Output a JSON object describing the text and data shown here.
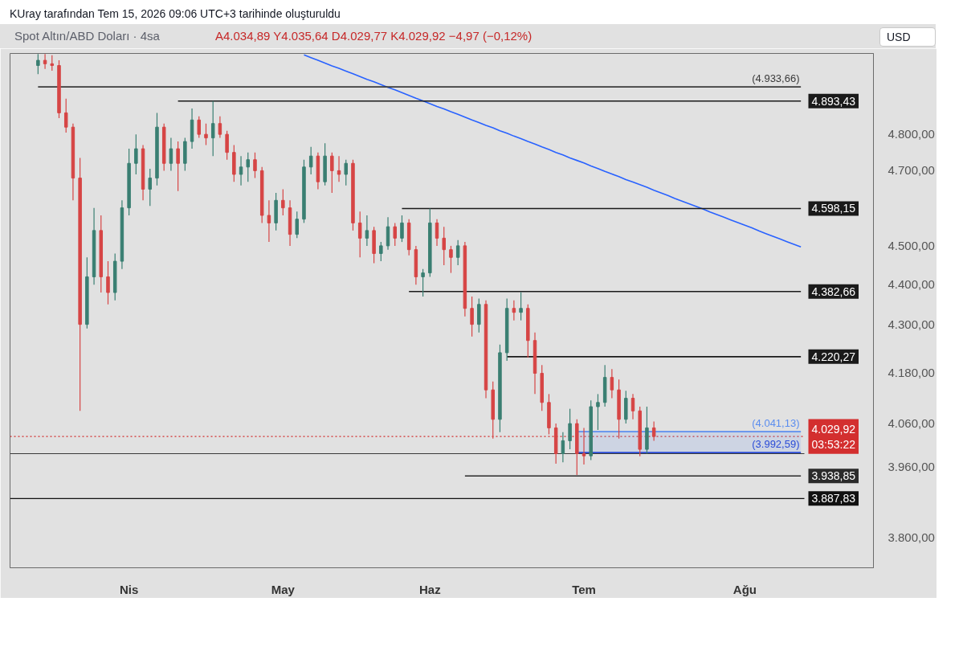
{
  "chart_data": {
    "type": "candlestick",
    "title": "Spot Altın/ABD Doları · 4sa",
    "subtitle": "A4.034,89 Y4.035,64 D4.029,77 K4.029,92 −4,97 (−0,12%)",
    "annotations": [
      "KUray tarafından Tem 15, 2026 09:06 UTC+3 tarihinde oluşturuldu",
      "USD"
    ],
    "categories": [
      null,
      null,
      null,
      null,
      null,
      null,
      null,
      null,
      null,
      null,
      null,
      null,
      null,
      "Nis",
      null,
      null,
      null,
      null,
      null,
      null,
      null,
      null,
      null,
      null,
      null,
      null,
      null,
      null,
      null,
      null,
      null,
      null,
      null,
      null,
      null,
      "May",
      null,
      null,
      null,
      null,
      null,
      null,
      null,
      null,
      null,
      null,
      null,
      null,
      null,
      null,
      null,
      null,
      null,
      null,
      null,
      null,
      "Haz",
      null,
      null,
      null,
      null,
      null,
      null,
      null,
      null,
      null,
      null,
      null,
      null,
      null,
      null,
      null,
      null,
      null,
      null,
      null,
      null,
      null,
      "Tem",
      null,
      null,
      null,
      null,
      null,
      null,
      null,
      null,
      null,
      null,
      null,
      null,
      null,
      null,
      null,
      null,
      null,
      null,
      null,
      null,
      null,
      null,
      "Ağu",
      null,
      null,
      null,
      null,
      null,
      null,
      null,
      null
    ],
    "ohlc": [
      [
        4995,
        5028,
        4970,
        5010
      ],
      [
        5010,
        5028,
        4985,
        5000
      ],
      [
        5000,
        5025,
        4980,
        4995
      ],
      [
        4995,
        5010,
        4845,
        4860
      ],
      [
        4860,
        4900,
        4805,
        4820
      ],
      [
        4820,
        4830,
        4620,
        4680
      ],
      [
        4680,
        4735,
        4090,
        4300
      ],
      [
        4300,
        4470,
        4290,
        4420
      ],
      [
        4420,
        4600,
        4400,
        4540
      ],
      [
        4540,
        4580,
        4380,
        4420
      ],
      [
        4420,
        4460,
        4350,
        4380
      ],
      [
        4380,
        4480,
        4360,
        4460
      ],
      [
        4460,
        4620,
        4440,
        4600
      ],
      [
        4600,
        4760,
        4580,
        4720
      ],
      [
        4720,
        4800,
        4690,
        4760
      ],
      [
        4760,
        4770,
        4620,
        4650
      ],
      [
        4650,
        4705,
        4605,
        4680
      ],
      [
        4680,
        4860,
        4660,
        4820
      ],
      [
        4820,
        4830,
        4700,
        4720
      ],
      [
        4720,
        4790,
        4700,
        4760
      ],
      [
        4760,
        4780,
        4645,
        4720
      ],
      [
        4720,
        4790,
        4700,
        4780
      ],
      [
        4780,
        4872,
        4760,
        4840
      ],
      [
        4840,
        4850,
        4790,
        4800
      ],
      [
        4800,
        4830,
        4770,
        4790
      ],
      [
        4790,
        4893,
        4740,
        4830
      ],
      [
        4830,
        4850,
        4790,
        4800
      ],
      [
        4800,
        4810,
        4730,
        4750
      ],
      [
        4750,
        4770,
        4670,
        4690
      ],
      [
        4690,
        4740,
        4660,
        4710
      ],
      [
        4710,
        4750,
        4670,
        4730
      ],
      [
        4730,
        4750,
        4680,
        4700
      ],
      [
        4700,
        4710,
        4560,
        4580
      ],
      [
        4580,
        4620,
        4510,
        4560
      ],
      [
        4560,
        4640,
        4540,
        4620
      ],
      [
        4620,
        4650,
        4580,
        4600
      ],
      [
        4600,
        4620,
        4500,
        4530
      ],
      [
        4530,
        4590,
        4520,
        4570
      ],
      [
        4570,
        4730,
        4560,
        4710
      ],
      [
        4710,
        4765,
        4690,
        4740
      ],
      [
        4740,
        4750,
        4650,
        4670
      ],
      [
        4670,
        4775,
        4660,
        4740
      ],
      [
        4740,
        4750,
        4640,
        4700
      ],
      [
        4700,
        4740,
        4670,
        4690
      ],
      [
        4690,
        4730,
        4660,
        4720
      ],
      [
        4720,
        4730,
        4540,
        4560
      ],
      [
        4560,
        4590,
        4470,
        4520
      ],
      [
        4520,
        4580,
        4500,
        4540
      ],
      [
        4540,
        4550,
        4455,
        4480
      ],
      [
        4480,
        4510,
        4460,
        4500
      ],
      [
        4500,
        4575,
        4490,
        4550
      ],
      [
        4550,
        4560,
        4500,
        4520
      ],
      [
        4520,
        4580,
        4510,
        4560
      ],
      [
        4560,
        4570,
        4475,
        4490
      ],
      [
        4490,
        4500,
        4400,
        4420
      ],
      [
        4420,
        4440,
        4370,
        4430
      ],
      [
        4430,
        4598,
        4420,
        4560
      ],
      [
        4560,
        4570,
        4500,
        4520
      ],
      [
        4520,
        4550,
        4450,
        4490
      ],
      [
        4490,
        4500,
        4430,
        4470
      ],
      [
        4470,
        4515,
        4450,
        4500
      ],
      [
        4500,
        4510,
        4320,
        4340
      ],
      [
        4340,
        4370,
        4270,
        4300
      ],
      [
        4300,
        4365,
        4280,
        4350
      ],
      [
        4350,
        4360,
        4120,
        4140
      ],
      [
        4140,
        4160,
        4025,
        4070
      ],
      [
        4070,
        4250,
        4040,
        4230
      ],
      [
        4230,
        4365,
        4210,
        4340
      ],
      [
        4340,
        4360,
        4310,
        4330
      ],
      [
        4330,
        4381,
        4310,
        4340
      ],
      [
        4340,
        4350,
        4218,
        4260
      ],
      [
        4260,
        4280,
        4130,
        4180
      ],
      [
        4180,
        4200,
        4090,
        4110
      ],
      [
        4110,
        4130,
        4035,
        4050
      ],
      [
        4050,
        4060,
        3967,
        3990
      ],
      [
        3990,
        4040,
        3970,
        4020
      ],
      [
        4020,
        4095,
        4000,
        4060
      ],
      [
        4060,
        4070,
        3941,
        3990
      ],
      [
        3990,
        4050,
        3965,
        3985
      ],
      [
        3985,
        4115,
        3975,
        4100
      ],
      [
        4100,
        4130,
        4045,
        4110
      ],
      [
        4110,
        4200,
        4100,
        4170
      ],
      [
        4170,
        4190,
        4120,
        4140
      ],
      [
        4140,
        4165,
        4025,
        4070
      ],
      [
        4070,
        4138,
        4060,
        4120
      ],
      [
        4120,
        4130,
        4070,
        4090
      ],
      [
        4090,
        4100,
        3984,
        4000
      ],
      [
        4000,
        4100,
        3990,
        4050
      ],
      [
        4050,
        4065,
        4020,
        4029.92
      ],
      null,
      null,
      null,
      null,
      null,
      null,
      null,
      null,
      null,
      null,
      null,
      null,
      null,
      null,
      null,
      null,
      null,
      null,
      null,
      null,
      null
    ],
    "colors": [
      "#3a7f72",
      "#d64545",
      "#d64545",
      "#d64545",
      "#d64545",
      "#d64545",
      "#d64545",
      "#3a7f72",
      "#3a7f72",
      "#d64545",
      "#d64545",
      "#3a7f72",
      "#3a7f72",
      "#3a7f72",
      "#3a7f72",
      "#d64545",
      "#3a7f72",
      "#3a7f72",
      "#d64545",
      "#3a7f72",
      "#d64545",
      "#3a7f72",
      "#3a7f72",
      "#d64545",
      "#d64545",
      "#3a7f72",
      "#d64545",
      "#d64545",
      "#d64545",
      "#3a7f72",
      "#3a7f72",
      "#d64545",
      "#d64545",
      "#d64545",
      "#3a7f72",
      "#d64545",
      "#d64545",
      "#3a7f72",
      "#3a7f72",
      "#3a7f72",
      "#d64545",
      "#3a7f72",
      "#d64545",
      "#d64545",
      "#3a7f72",
      "#d64545",
      "#d64545",
      "#3a7f72",
      "#d64545",
      "#3a7f72",
      "#3a7f72",
      "#d64545",
      "#3a7f72",
      "#d64545",
      "#d64545",
      "#3a7f72",
      "#3a7f72",
      "#d64545",
      "#d64545",
      "#d64545",
      "#3a7f72",
      "#d64545",
      "#d64545",
      "#3a7f72",
      "#d64545",
      "#d64545",
      "#3a7f72",
      "#3a7f72",
      "#d64545",
      "#3a7f72",
      "#d64545",
      "#d64545",
      "#d64545",
      "#d64545",
      "#d64545",
      "#3a7f72",
      "#3a7f72",
      "#d64545",
      "#d64545",
      "#3a7f72",
      "#3a7f72",
      "#3a7f72",
      "#d64545",
      "#d64545",
      "#3a7f72",
      "#d64545",
      "#d64545",
      "#3a7f72",
      "#d64545",
      null,
      null,
      null,
      null,
      null,
      null,
      null,
      null,
      null,
      null,
      null,
      null,
      null,
      null,
      null,
      null,
      null,
      null,
      null,
      null,
      null
    ],
    "series": [
      {
        "type": "line",
        "color": "#2962ff",
        "values": [
          null,
          null,
          null,
          null,
          null,
          null,
          null,
          null,
          null,
          null,
          null,
          null,
          null,
          null,
          null,
          null,
          null,
          null,
          null,
          null,
          null,
          null,
          null,
          null,
          null,
          null,
          null,
          null,
          null,
          null,
          null,
          null,
          null,
          null,
          null,
          null,
          null,
          null,
          5026,
          5018,
          5010,
          5002,
          4994,
          4987,
          4979,
          4971,
          4963,
          4955,
          4948,
          4940,
          4932,
          4925,
          4917,
          4909,
          4901,
          4894,
          4886,
          4878,
          4871,
          4863,
          4856,
          4848,
          4840,
          4833,
          4825,
          4818,
          4810,
          4803,
          4795,
          4788,
          4780,
          4773,
          4765,
          4758,
          4750,
          4743,
          4735,
          4728,
          4721,
          4713,
          4706,
          4698,
          4691,
          4684,
          4676,
          4669,
          4662,
          4655,
          4647,
          4640,
          4633,
          4625,
          4618,
          4611,
          4604,
          4597,
          4589,
          4582,
          4575,
          4568,
          4561,
          4554,
          4547,
          4539,
          4532,
          4525,
          4518,
          4511,
          4504,
          4497
        ]
      },
      {
        "type": "line",
        "name": "4.893,43",
        "color": "#1a1a1a",
        "values": [
          null,
          null,
          null,
          null,
          null,
          null,
          null,
          null,
          null,
          null,
          null,
          null,
          null,
          null,
          null,
          null,
          null,
          null,
          null,
          null,
          4893.43,
          4893.43,
          4893.43,
          4893.43,
          4893.43,
          4893.43,
          4893.43,
          4893.43,
          4893.43,
          4893.43,
          4893.43,
          4893.43,
          4893.43,
          4893.43,
          4893.43,
          4893.43,
          4893.43,
          4893.43,
          4893.43,
          4893.43,
          4893.43,
          4893.43,
          4893.43,
          4893.43,
          4893.43,
          4893.43,
          4893.43,
          4893.43,
          4893.43,
          4893.43,
          4893.43,
          4893.43,
          4893.43,
          4893.43,
          4893.43,
          4893.43,
          4893.43,
          4893.43,
          4893.43,
          4893.43,
          4893.43,
          4893.43,
          4893.43,
          4893.43,
          4893.43,
          4893.43,
          4893.43,
          4893.43,
          4893.43,
          4893.43,
          4893.43,
          4893.43,
          4893.43,
          4893.43,
          4893.43,
          4893.43,
          4893.43,
          4893.43,
          4893.43,
          4893.43,
          4893.43,
          4893.43,
          4893.43,
          4893.43,
          4893.43,
          4893.43,
          4893.43,
          4893.43,
          4893.43,
          4893.43,
          4893.43,
          4893.43,
          4893.43,
          4893.43,
          4893.43,
          4893.43,
          4893.43,
          4893.43,
          4893.43,
          4893.43,
          4893.43,
          4893.43,
          4893.43,
          4893.43,
          4893.43,
          4893.43,
          4893.43,
          4893.43,
          4893.43,
          4893.43
        ]
      },
      {
        "type": "line",
        "name": "4.598,15",
        "color": "#1a1a1a",
        "values": [
          null,
          null,
          null,
          null,
          null,
          null,
          null,
          null,
          null,
          null,
          null,
          null,
          null,
          null,
          null,
          null,
          null,
          null,
          null,
          null,
          null,
          null,
          null,
          null,
          null,
          null,
          null,
          null,
          null,
          null,
          null,
          null,
          null,
          null,
          null,
          null,
          null,
          null,
          null,
          null,
          null,
          null,
          null,
          null,
          null,
          null,
          null,
          null,
          null,
          null,
          null,
          null,
          4598.15,
          4598.15,
          4598.15,
          4598.15,
          4598.15,
          4598.15,
          4598.15,
          4598.15,
          4598.15,
          4598.15,
          4598.15,
          4598.15,
          4598.15,
          4598.15,
          4598.15,
          4598.15,
          4598.15,
          4598.15,
          4598.15,
          4598.15,
          4598.15,
          4598.15,
          4598.15,
          4598.15,
          4598.15,
          4598.15,
          4598.15,
          4598.15,
          4598.15,
          4598.15,
          4598.15,
          4598.15,
          4598.15,
          4598.15,
          4598.15,
          4598.15,
          4598.15,
          4598.15,
          4598.15,
          4598.15,
          4598.15,
          4598.15,
          4598.15,
          4598.15,
          4598.15,
          4598.15,
          4598.15,
          4598.15,
          4598.15,
          4598.15,
          4598.15,
          4598.15,
          4598.15,
          4598.15,
          4598.15,
          4598.15,
          4598.15,
          4598.15
        ]
      },
      {
        "type": "line",
        "name": "4.382,66",
        "color": "#1a1a1a",
        "values": [
          null,
          null,
          null,
          null,
          null,
          null,
          null,
          null,
          null,
          null,
          null,
          null,
          null,
          null,
          null,
          null,
          null,
          null,
          null,
          null,
          null,
          null,
          null,
          null,
          null,
          null,
          null,
          null,
          null,
          null,
          null,
          null,
          null,
          null,
          null,
          null,
          null,
          null,
          null,
          null,
          null,
          null,
          null,
          null,
          null,
          null,
          null,
          null,
          null,
          null,
          null,
          null,
          null,
          4382.66,
          4382.66,
          4382.66,
          4382.66,
          4382.66,
          4382.66,
          4382.66,
          4382.66,
          4382.66,
          4382.66,
          4382.66,
          4382.66,
          4382.66,
          4382.66,
          4382.66,
          4382.66,
          4382.66,
          4382.66,
          4382.66,
          4382.66,
          4382.66,
          4382.66,
          4382.66,
          4382.66,
          4382.66,
          4382.66,
          4382.66,
          4382.66,
          4382.66,
          4382.66,
          4382.66,
          4382.66,
          4382.66,
          4382.66,
          4382.66,
          4382.66,
          4382.66,
          4382.66,
          4382.66,
          4382.66,
          4382.66,
          4382.66,
          4382.66,
          4382.66,
          4382.66,
          4382.66,
          4382.66,
          4382.66,
          4382.66,
          4382.66,
          4382.66,
          4382.66,
          4382.66,
          4382.66,
          4382.66,
          4382.66,
          4382.66
        ]
      },
      {
        "type": "line",
        "name": "4.220,27",
        "color": "#1a1a1a",
        "values": [
          null,
          null,
          null,
          null,
          null,
          null,
          null,
          null,
          null,
          null,
          null,
          null,
          null,
          null,
          null,
          null,
          null,
          null,
          null,
          null,
          null,
          null,
          null,
          null,
          null,
          null,
          null,
          null,
          null,
          null,
          null,
          null,
          null,
          null,
          null,
          null,
          null,
          null,
          null,
          null,
          null,
          null,
          null,
          null,
          null,
          null,
          null,
          null,
          null,
          null,
          null,
          null,
          null,
          null,
          null,
          null,
          null,
          null,
          null,
          null,
          null,
          null,
          null,
          null,
          null,
          null,
          null,
          4220.27,
          4220.27,
          4220.27,
          4220.27,
          4220.27,
          4220.27,
          4220.27,
          4220.27,
          4220.27,
          4220.27,
          4220.27,
          4220.27,
          4220.27,
          4220.27,
          4220.27,
          4220.27,
          4220.27,
          4220.27,
          4220.27,
          4220.27,
          4220.27,
          4220.27,
          4220.27,
          4220.27,
          4220.27,
          4220.27,
          4220.27,
          4220.27,
          4220.27,
          4220.27,
          4220.27,
          4220.27,
          4220.27,
          4220.27,
          4220.27,
          4220.27,
          4220.27,
          4220.27,
          4220.27,
          4220.27,
          4220.27,
          4220.27,
          4220.27
        ]
      },
      {
        "type": "line",
        "name": "3.938,85",
        "color": "#2b2b2b",
        "values": [
          null,
          null,
          null,
          null,
          null,
          null,
          null,
          null,
          null,
          null,
          null,
          null,
          null,
          null,
          null,
          null,
          null,
          null,
          null,
          null,
          null,
          null,
          null,
          null,
          null,
          null,
          null,
          null,
          null,
          null,
          null,
          null,
          null,
          null,
          null,
          null,
          null,
          null,
          null,
          null,
          null,
          null,
          null,
          null,
          null,
          null,
          null,
          null,
          null,
          null,
          null,
          null,
          null,
          null,
          null,
          null,
          null,
          null,
          null,
          null,
          null,
          3938.85,
          3938.85,
          3938.85,
          3938.85,
          3938.85,
          3938.85,
          3938.85,
          3938.85,
          3938.85,
          3938.85,
          3938.85,
          3938.85,
          3938.85,
          3938.85,
          3938.85,
          3938.85,
          3938.85,
          3938.85,
          3938.85,
          3938.85,
          3938.85,
          3938.85,
          3938.85,
          3938.85,
          3938.85,
          3938.85,
          3938.85,
          3938.85,
          3938.85,
          3938.85,
          3938.85,
          3938.85,
          3938.85,
          3938.85,
          3938.85,
          3938.85,
          3938.85,
          3938.85,
          3938.85,
          3938.85,
          3938.85,
          3938.85,
          3938.85,
          3938.85,
          3938.85,
          3938.85,
          3938.85,
          3938.85,
          3938.85
        ]
      },
      {
        "type": "line",
        "name": "(4.933,66)",
        "color": "#3a3a3a",
        "values": [
          4933.66,
          4933.66,
          4933.66,
          4933.66,
          4933.66,
          4933.66,
          4933.66,
          4933.66,
          4933.66,
          4933.66,
          4933.66,
          4933.66,
          4933.66,
          4933.66,
          4933.66,
          4933.66,
          4933.66,
          4933.66,
          4933.66,
          4933.66,
          4933.66,
          4933.66,
          4933.66,
          4933.66,
          4933.66,
          4933.66,
          4933.66,
          4933.66,
          4933.66,
          4933.66,
          4933.66,
          4933.66,
          4933.66,
          4933.66,
          4933.66,
          4933.66,
          4933.66,
          4933.66,
          4933.66,
          4933.66,
          4933.66,
          4933.66,
          4933.66,
          4933.66,
          4933.66,
          4933.66,
          4933.66,
          4933.66,
          4933.66,
          4933.66,
          4933.66,
          4933.66,
          4933.66,
          4933.66,
          4933.66,
          4933.66,
          4933.66,
          4933.66,
          4933.66,
          4933.66,
          4933.66,
          4933.66,
          4933.66,
          4933.66,
          4933.66,
          4933.66,
          4933.66,
          4933.66,
          4933.66,
          4933.66,
          4933.66,
          4933.66,
          4933.66,
          4933.66,
          4933.66,
          4933.66,
          4933.66,
          4933.66,
          4933.66,
          4933.66,
          4933.66,
          4933.66,
          4933.66,
          4933.66,
          4933.66,
          4933.66,
          4933.66,
          4933.66,
          4933.66,
          4933.66,
          4933.66,
          4933.66,
          4933.66,
          4933.66,
          4933.66,
          4933.66,
          4933.66,
          4933.66,
          4933.66,
          4933.66,
          4933.66,
          4933.66,
          4933.66,
          4933.66,
          4933.66,
          4933.66,
          4933.66,
          4933.66,
          4933.66,
          4933.66
        ]
      },
      {
        "type": "line",
        "name": "(4.041,13)",
        "color": "#5b8def",
        "values": [
          null,
          null,
          null,
          null,
          null,
          null,
          null,
          null,
          null,
          null,
          null,
          null,
          null,
          null,
          null,
          null,
          null,
          null,
          null,
          null,
          null,
          null,
          null,
          null,
          null,
          null,
          null,
          null,
          null,
          null,
          null,
          null,
          null,
          null,
          null,
          null,
          null,
          null,
          null,
          null,
          null,
          null,
          null,
          null,
          null,
          null,
          null,
          null,
          null,
          null,
          null,
          null,
          null,
          null,
          null,
          null,
          null,
          null,
          null,
          null,
          null,
          null,
          null,
          null,
          null,
          null,
          null,
          null,
          null,
          null,
          null,
          null,
          null,
          null,
          null,
          null,
          null,
          4041.13,
          4041.13,
          4041.13,
          4041.13,
          4041.13,
          4041.13,
          4041.13,
          4041.13,
          4041.13,
          4041.13,
          4041.13,
          4041.13,
          4041.13,
          4041.13,
          4041.13,
          4041.13,
          4041.13,
          4041.13,
          4041.13,
          4041.13,
          4041.13,
          4041.13,
          4041.13,
          4041.13,
          4041.13,
          4041.13,
          4041.13,
          4041.13,
          4041.13,
          4041.13,
          4041.13,
          4041.13,
          4041.13
        ],
        "lower": [
          null,
          null,
          null,
          null,
          null,
          null,
          null,
          null,
          null,
          null,
          null,
          null,
          null,
          null,
          null,
          null,
          null,
          null,
          null,
          null,
          null,
          null,
          null,
          null,
          null,
          null,
          null,
          null,
          null,
          null,
          null,
          null,
          null,
          null,
          null,
          null,
          null,
          null,
          null,
          null,
          null,
          null,
          null,
          null,
          null,
          null,
          null,
          null,
          null,
          null,
          null,
          null,
          null,
          null,
          null,
          null,
          null,
          null,
          null,
          null,
          null,
          null,
          null,
          null,
          null,
          null,
          null,
          null,
          null,
          null,
          null,
          null,
          null,
          null,
          null,
          null,
          null,
          3992.59,
          3992.59,
          3992.59,
          3992.59,
          3992.59,
          3992.59,
          3992.59,
          3992.59,
          3992.59,
          3992.59,
          3992.59,
          3992.59,
          3992.59,
          3992.59,
          3992.59,
          3992.59,
          3992.59,
          3992.59,
          3992.59,
          3992.59,
          3992.59,
          3992.59,
          3992.59,
          3992.59,
          3992.59,
          3992.59,
          3992.59,
          3992.59,
          3992.59,
          3992.59,
          3992.59,
          3992.59,
          3992.59
        ],
        "upper": [
          null,
          null,
          null,
          null,
          null,
          null,
          null,
          null,
          null,
          null,
          null,
          null,
          null,
          null,
          null,
          null,
          null,
          null,
          null,
          null,
          null,
          null,
          null,
          null,
          null,
          null,
          null,
          null,
          null,
          null,
          null,
          null,
          null,
          null,
          null,
          null,
          null,
          null,
          null,
          null,
          null,
          null,
          null,
          null,
          null,
          null,
          null,
          null,
          null,
          null,
          null,
          null,
          null,
          null,
          null,
          null,
          null,
          null,
          null,
          null,
          null,
          null,
          null,
          null,
          null,
          null,
          null,
          null,
          null,
          null,
          null,
          null,
          null,
          null,
          null,
          null,
          null,
          4041.13,
          4041.13,
          4041.13,
          4041.13,
          4041.13,
          4041.13,
          4041.13,
          4041.13,
          4041.13,
          4041.13,
          4041.13,
          4041.13,
          4041.13,
          4041.13,
          4041.13,
          4041.13,
          4041.13,
          4041.13,
          4041.13,
          4041.13,
          4041.13,
          4041.13,
          4041.13,
          4041.13,
          4041.13,
          4041.13,
          4041.13,
          4041.13,
          4041.13,
          4041.13,
          4041.13,
          4041.13,
          4041.13
        ]
      },
      {
        "type": "line",
        "name": "(3.992,59)",
        "color": "#2a4bd7",
        "values": [
          null,
          null,
          null,
          null,
          null,
          null,
          null,
          null,
          null,
          null,
          null,
          null,
          null,
          null,
          null,
          null,
          null,
          null,
          null,
          null,
          null,
          null,
          null,
          null,
          null,
          null,
          null,
          null,
          null,
          null,
          null,
          null,
          null,
          null,
          null,
          null,
          null,
          null,
          null,
          null,
          null,
          null,
          null,
          null,
          null,
          null,
          null,
          null,
          null,
          null,
          null,
          null,
          null,
          null,
          null,
          null,
          null,
          null,
          null,
          null,
          null,
          null,
          null,
          null,
          null,
          null,
          null,
          null,
          null,
          null,
          null,
          null,
          null,
          null,
          null,
          null,
          null,
          3992.59,
          3992.59,
          3992.59,
          3992.59,
          3992.59,
          3992.59,
          3992.59,
          3992.59,
          3992.59,
          3992.59,
          3992.59,
          3992.59,
          3992.59,
          3992.59,
          3992.59,
          3992.59,
          3992.59,
          3992.59,
          3992.59,
          3992.59,
          3992.59,
          3992.59,
          3992.59,
          3992.59,
          3992.59,
          3992.59,
          3992.59,
          3992.59,
          3992.59,
          3992.59,
          3992.59,
          3992.59,
          3992.59
        ]
      }
    ],
    "ref_lines": [
      {
        "axis": "y",
        "value": 4029.92,
        "label": "4.029,92\n03:53:22",
        "color": "#d32f2f",
        "line_style": "dotted"
      },
      {
        "axis": "y",
        "value": 3887.83,
        "label": "3.887,83",
        "color": "#111111"
      },
      {
        "axis": "y",
        "value": 3990,
        "color": "#3a3a3a"
      }
    ],
    "ylim": [
      3735,
      5030
    ],
    "yticks": [
      {
        "value": 4800,
        "label": "4.800,00"
      },
      {
        "value": 4700,
        "label": "4.700,00"
      },
      {
        "value": 4500,
        "label": "4.500,00"
      },
      {
        "value": 4400,
        "label": "4.400,00"
      },
      {
        "value": 4300,
        "label": "4.300,00"
      },
      {
        "value": 4180,
        "label": "4.180,00"
      },
      {
        "value": 4060,
        "label": "4.060,00"
      },
      {
        "value": 3960,
        "label": "3.960,00"
      },
      {
        "value": 3800,
        "label": "3.800,00"
      }
    ],
    "log": "y"
  }
}
